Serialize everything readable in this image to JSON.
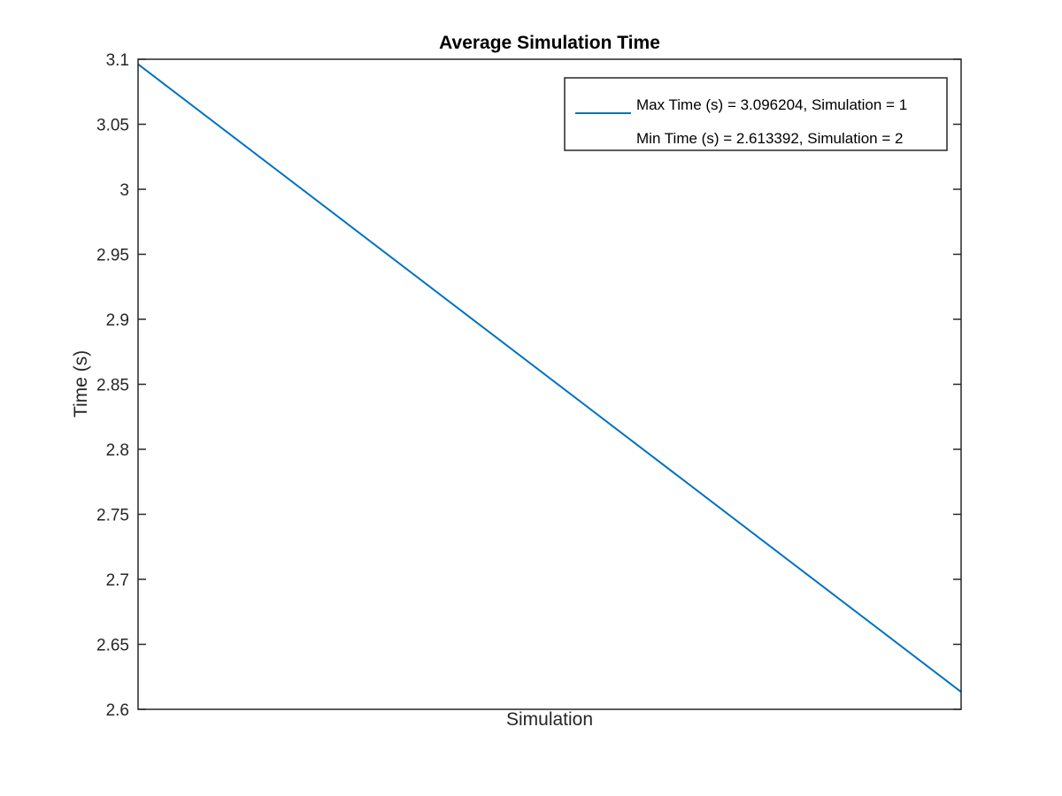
{
  "chart_data": {
    "type": "line",
    "title": "Average Simulation Time",
    "xlabel": "Simulation",
    "ylabel": "Time (s)",
    "xlim": [
      1,
      2
    ],
    "ylim": [
      2.6,
      3.1
    ],
    "x": [
      1,
      2
    ],
    "yticks": [
      "2.6",
      "2.65",
      "2.7",
      "2.75",
      "2.8",
      "2.85",
      "2.9",
      "2.95",
      "3",
      "3.05",
      "3.1"
    ],
    "series": [
      {
        "values": [
          3.096204,
          2.613392
        ],
        "color": "#0072BD"
      }
    ],
    "legend": {
      "position": "top-right",
      "entries": [
        "Max Time (s) = 3.096204, Simulation = 1",
        "Min Time (s) = 2.613392, Simulation = 2"
      ]
    },
    "grid": false
  }
}
